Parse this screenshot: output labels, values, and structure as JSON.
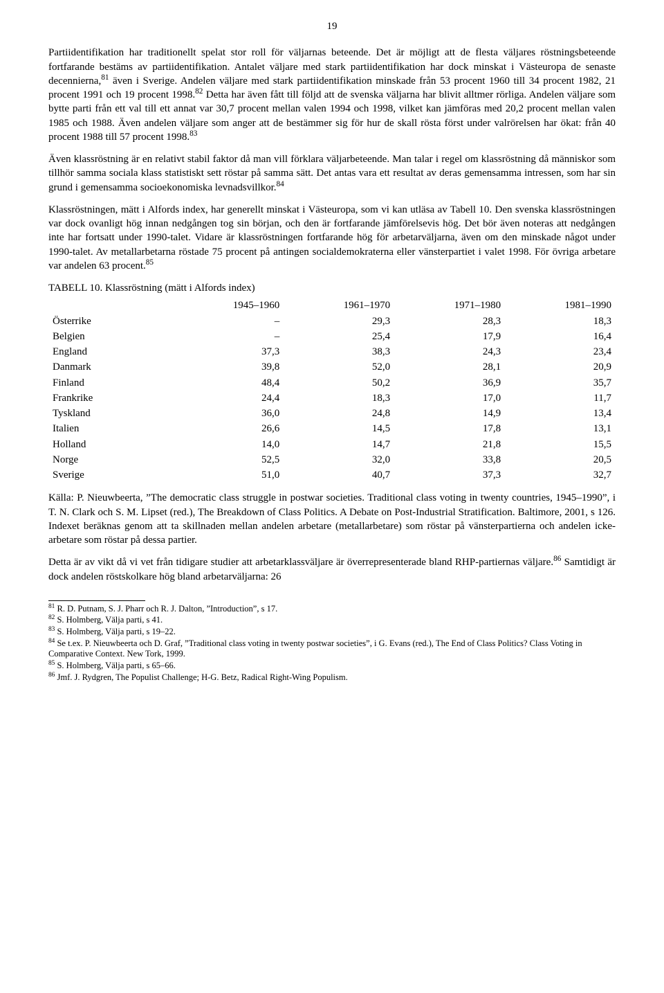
{
  "page_number": "19",
  "paragraphs": {
    "p1_a": "Partiidentifikation har traditionellt spelat stor roll för väljarnas beteende. Det är möjligt att de flesta väljares röstningsbeteende fortfarande bestäms av partiidentifikation. Antalet väljare med stark partiidentifikation har dock minskat i Västeuropa de senaste decennierna,",
    "p1_b": " även i Sverige. Andelen väljare med stark partiidentifikation minskade från 53 procent 1960 till 34 procent 1982, 21 procent 1991 och 19 procent 1998.",
    "p1_c": " Detta har även fått till följd att de svenska väljarna har blivit alltmer rörliga. Andelen väljare som bytte parti från ett val till ett annat var 30,7 procent mellan valen 1994 och 1998, vilket kan jämföras med 20,2 procent mellan valen 1985 och 1988. Även andelen väljare som anger att de bestämmer sig för hur de skall rösta först under valrörelsen har ökat: från 40 procent 1988 till 57 procent 1998.",
    "p2_a": "Även klassröstning är en relativt stabil faktor då man vill förklara väljarbeteende. Man talar i regel om klassröstning då människor som tillhör samma sociala klass statistiskt sett röstar på samma sätt. Det antas vara ett resultat av deras gemensamma intressen, som har sin grund i gemensamma socioekonomiska levnadsvillkor.",
    "p3_a": "Klassröstningen, mätt i Alfords index, har generellt minskat i Västeuropa, som vi kan utläsa av Tabell 10. Den svenska klassröstningen var dock ovanligt hög innan nedgången tog sin början, och den är fortfarande jämförelsevis hög. Det bör även noteras att nedgången inte har fortsatt under 1990-talet. Vidare är klassröstningen fortfarande hög för arbetarväljarna, även om den minskade något under 1990-talet. Av metallarbetarna röstade 75 procent på antingen socialdemokraterna eller vänsterpartiet i valet 1998. För övriga arbetare var andelen 63 procent.",
    "p4": "Källa: P. Nieuwbeerta, ”The democratic class struggle in postwar societies. Traditional class voting in twenty countries, 1945–1990”, i T. N. Clark och S. M. Lipset (red.), The Breakdown of Class Politics. A Debate on Post-Industrial Stratification. Baltimore, 2001, s 126. Indexet beräknas genom att ta skillnaden mellan andelen arbetare (metallarbetare) som röstar på vänsterpartierna och andelen icke-arbetare som röstar på dessa partier.",
    "p5_a": "Detta är av vikt då vi vet från tidigare studier att arbetarklassväljare är överrepresenterade bland RHP-partiernas väljare.",
    "p5_b": " Samtidigt är dock andelen röstskolkare hög bland arbetarväljarna: 26"
  },
  "sup": {
    "s81": "81",
    "s82": "82",
    "s83": "83",
    "s84": "84",
    "s85": "85",
    "s86": "86"
  },
  "table": {
    "caption": "TABELL 10. Klassröstning (mätt i Alfords index)",
    "headers": [
      "",
      "1945–1960",
      "1961–1970",
      "1971–1980",
      "1981–1990"
    ],
    "rows": [
      [
        "Österrike",
        "–",
        "29,3",
        "28,3",
        "18,3"
      ],
      [
        "Belgien",
        "–",
        "25,4",
        "17,9",
        "16,4"
      ],
      [
        "England",
        "37,3",
        "38,3",
        "24,3",
        "23,4"
      ],
      [
        "Danmark",
        "39,8",
        "52,0",
        "28,1",
        "20,9"
      ],
      [
        "Finland",
        "48,4",
        "50,2",
        "36,9",
        "35,7"
      ],
      [
        "Frankrike",
        "24,4",
        "18,3",
        "17,0",
        "11,7"
      ],
      [
        "Tyskland",
        "36,0",
        "24,8",
        "14,9",
        "13,4"
      ],
      [
        "Italien",
        "26,6",
        "14,5",
        "17,8",
        "13,1"
      ],
      [
        "Holland",
        "14,0",
        "14,7",
        "21,8",
        "15,5"
      ],
      [
        "Norge",
        "52,5",
        "32,0",
        "33,8",
        "20,5"
      ],
      [
        "Sverige",
        "51,0",
        "40,7",
        "37,3",
        "32,7"
      ]
    ]
  },
  "footnotes": {
    "f81": "R. D. Putnam, S. J. Pharr och R. J. Dalton, ”Introduction”, s 17.",
    "f82": "S. Holmberg, Välja parti, s 41.",
    "f83": "S. Holmberg, Välja parti, s 19–22.",
    "f84": "Se t.ex. P. Nieuwbeerta och D. Graf, ”Traditional class voting in twenty postwar societies”, i G. Evans (red.), The End of Class Politics? Class Voting in Comparative Context. New Tork, 1999.",
    "f85": "S. Holmberg, Välja parti, s 65–66.",
    "f86": "Jmf. J. Rydgren, The Populist Challenge; H-G. Betz, Radical Right-Wing Populism."
  }
}
